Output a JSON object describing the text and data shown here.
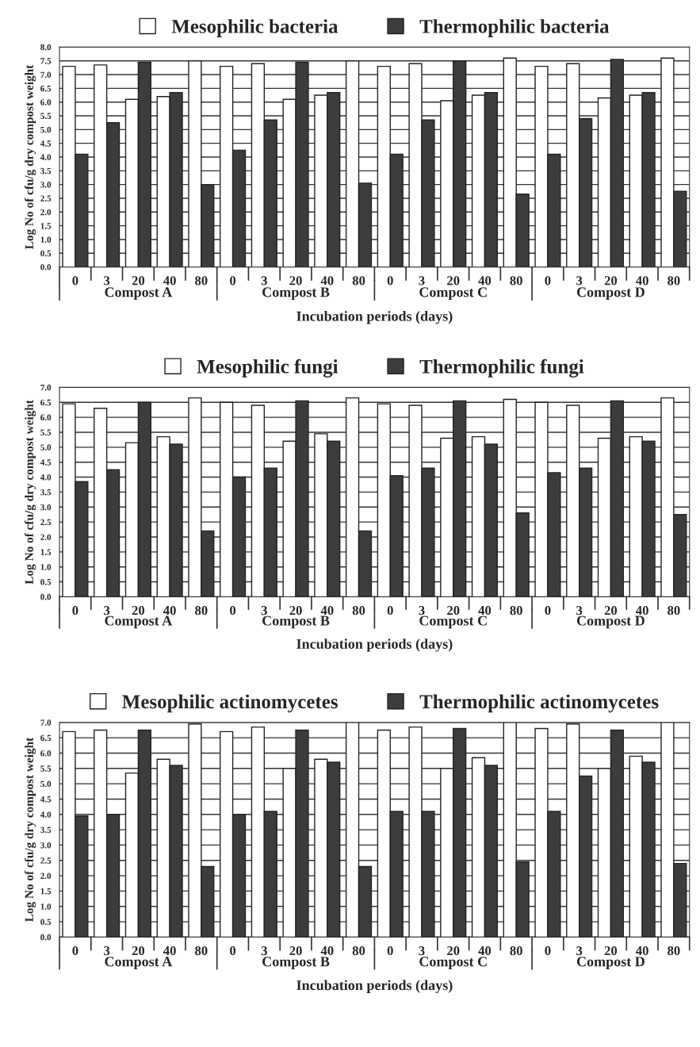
{
  "chart_data": [
    {
      "type": "bar",
      "categories": [
        "0",
        "3",
        "20",
        "40",
        "80",
        "0",
        "3",
        "20",
        "40",
        "80",
        "0",
        "3",
        "20",
        "40",
        "80",
        "0",
        "3",
        "20",
        "40",
        "80"
      ],
      "xlabel": "Incubation periods (days)",
      "ylabel": "Log No of cfu/g dry compost weight",
      "annotations": [
        "Compost A",
        "Compost B",
        "Compost C",
        "Compost D"
      ],
      "ylim": [
        0,
        8
      ],
      "yticks": [
        {
          "value": 0,
          "label": "0.0"
        },
        {
          "value": 0.5,
          "label": "0.5"
        },
        {
          "value": 1,
          "label": "1.0"
        },
        {
          "value": 1.5,
          "label": "1.5"
        },
        {
          "value": 2,
          "label": "2.0"
        },
        {
          "value": 2.5,
          "label": "2.5"
        },
        {
          "value": 3,
          "label": "3.0"
        },
        {
          "value": 3.5,
          "label": "3.5"
        },
        {
          "value": 4,
          "label": "4.0"
        },
        {
          "value": 4.5,
          "label": "4.5"
        },
        {
          "value": 5,
          "label": "5.0"
        },
        {
          "value": 5.5,
          "label": "5.5"
        },
        {
          "value": 6,
          "label": "6.0"
        },
        {
          "value": 6.5,
          "label": "6.5"
        },
        {
          "value": 7,
          "label": "7.0"
        },
        {
          "value": 7.5,
          "label": "7.5"
        },
        {
          "value": 8,
          "label": "8.0"
        }
      ],
      "grid": "y",
      "legend": "top",
      "series": [
        {
          "name": "Mesophilic bacteria",
          "color": "#ffffff",
          "values": [
            7.3,
            7.35,
            6.1,
            6.2,
            7.5,
            7.3,
            7.4,
            6.1,
            6.25,
            7.5,
            7.3,
            7.4,
            6.05,
            6.25,
            7.6,
            7.3,
            7.4,
            6.15,
            6.25,
            7.6
          ]
        },
        {
          "name": "Thermophilic bacteria",
          "color": "#3c3c3c",
          "values": [
            4.1,
            5.25,
            7.45,
            6.35,
            3.0,
            4.25,
            5.35,
            7.45,
            6.35,
            3.05,
            4.1,
            5.35,
            7.5,
            6.35,
            2.65,
            4.1,
            5.4,
            7.55,
            6.35,
            2.75
          ]
        }
      ]
    },
    {
      "type": "bar",
      "categories": [
        "0",
        "3",
        "20",
        "40",
        "80",
        "0",
        "3",
        "20",
        "40",
        "80",
        "0",
        "3",
        "20",
        "40",
        "80",
        "0",
        "3",
        "20",
        "40",
        "80"
      ],
      "xlabel": "Incubation periods (days)",
      "ylabel": "Log No of cfu/g dry compost weight",
      "annotations": [
        "Compost A",
        "Compost B",
        "Compost C",
        "Compost D"
      ],
      "ylim": [
        0,
        7
      ],
      "yticks": [
        {
          "value": 0,
          "label": "0.0"
        },
        {
          "value": 0.5,
          "label": "0.5"
        },
        {
          "value": 1,
          "label": "1.0"
        },
        {
          "value": 1.5,
          "label": "1.5"
        },
        {
          "value": 2,
          "label": "2.0"
        },
        {
          "value": 2.5,
          "label": "2.5"
        },
        {
          "value": 3,
          "label": "3.0"
        },
        {
          "value": 3.5,
          "label": "3.5"
        },
        {
          "value": 4,
          "label": "4.0"
        },
        {
          "value": 4.5,
          "label": "4.5"
        },
        {
          "value": 5,
          "label": "5.0"
        },
        {
          "value": 5.5,
          "label": "5.5"
        },
        {
          "value": 6,
          "label": "6.0"
        },
        {
          "value": 6.5,
          "label": "6.5"
        },
        {
          "value": 7,
          "label": "7.0"
        }
      ],
      "grid": "y",
      "legend": "top",
      "series": [
        {
          "name": "Mesophilic fungi",
          "color": "#ffffff",
          "values": [
            6.45,
            6.3,
            5.15,
            5.35,
            6.65,
            6.5,
            6.4,
            5.2,
            5.45,
            6.65,
            6.45,
            6.4,
            5.3,
            5.35,
            6.6,
            6.5,
            6.4,
            5.3,
            5.35,
            6.65
          ]
        },
        {
          "name": "Thermophilic fungi",
          "color": "#3c3c3c",
          "values": [
            3.85,
            4.25,
            6.5,
            5.1,
            2.2,
            4.0,
            4.3,
            6.55,
            5.2,
            2.2,
            4.05,
            4.3,
            6.55,
            5.1,
            2.8,
            4.15,
            4.3,
            6.55,
            5.2,
            2.75
          ]
        }
      ]
    },
    {
      "type": "bar",
      "categories": [
        "0",
        "3",
        "20",
        "40",
        "80",
        "0",
        "3",
        "20",
        "40",
        "80",
        "0",
        "3",
        "20",
        "40",
        "80",
        "0",
        "3",
        "20",
        "40",
        "80"
      ],
      "xlabel": "Incubation periods (days)",
      "ylabel": "Log No of cfu/g dry compost weight",
      "annotations": [
        "Compost A",
        "Compost B",
        "Compost C",
        "Compost D"
      ],
      "ylim": [
        0,
        7
      ],
      "yticks": [
        {
          "value": 0,
          "label": "0.0"
        },
        {
          "value": 0.5,
          "label": "0.5"
        },
        {
          "value": 1,
          "label": "1.0"
        },
        {
          "value": 1.5,
          "label": "1.5"
        },
        {
          "value": 2,
          "label": "2.0"
        },
        {
          "value": 2.5,
          "label": "2.5"
        },
        {
          "value": 3,
          "label": "3.0"
        },
        {
          "value": 3.5,
          "label": "3.5"
        },
        {
          "value": 4,
          "label": "4.0"
        },
        {
          "value": 4.5,
          "label": "4.5"
        },
        {
          "value": 5,
          "label": "5.0"
        },
        {
          "value": 5.5,
          "label": "5.5"
        },
        {
          "value": 6,
          "label": "6.0"
        },
        {
          "value": 6.5,
          "label": "6.5"
        },
        {
          "value": 7,
          "label": "7.0"
        }
      ],
      "grid": "y",
      "legend": "top",
      "series": [
        {
          "name": "Mesophilic actinomycetes",
          "color": "#ffffff",
          "values": [
            6.7,
            6.75,
            5.35,
            5.8,
            6.95,
            6.7,
            6.85,
            5.5,
            5.8,
            7.0,
            6.75,
            6.85,
            5.5,
            5.85,
            7.0,
            6.8,
            6.95,
            5.5,
            5.9,
            7.0
          ]
        },
        {
          "name": "Thermophilic actinomycetes",
          "color": "#3c3c3c",
          "values": [
            3.95,
            4.0,
            6.75,
            5.6,
            2.3,
            4.0,
            4.1,
            6.75,
            5.7,
            2.3,
            4.1,
            4.1,
            6.8,
            5.6,
            2.45,
            4.1,
            5.25,
            6.75,
            5.7,
            2.4
          ]
        }
      ]
    }
  ]
}
